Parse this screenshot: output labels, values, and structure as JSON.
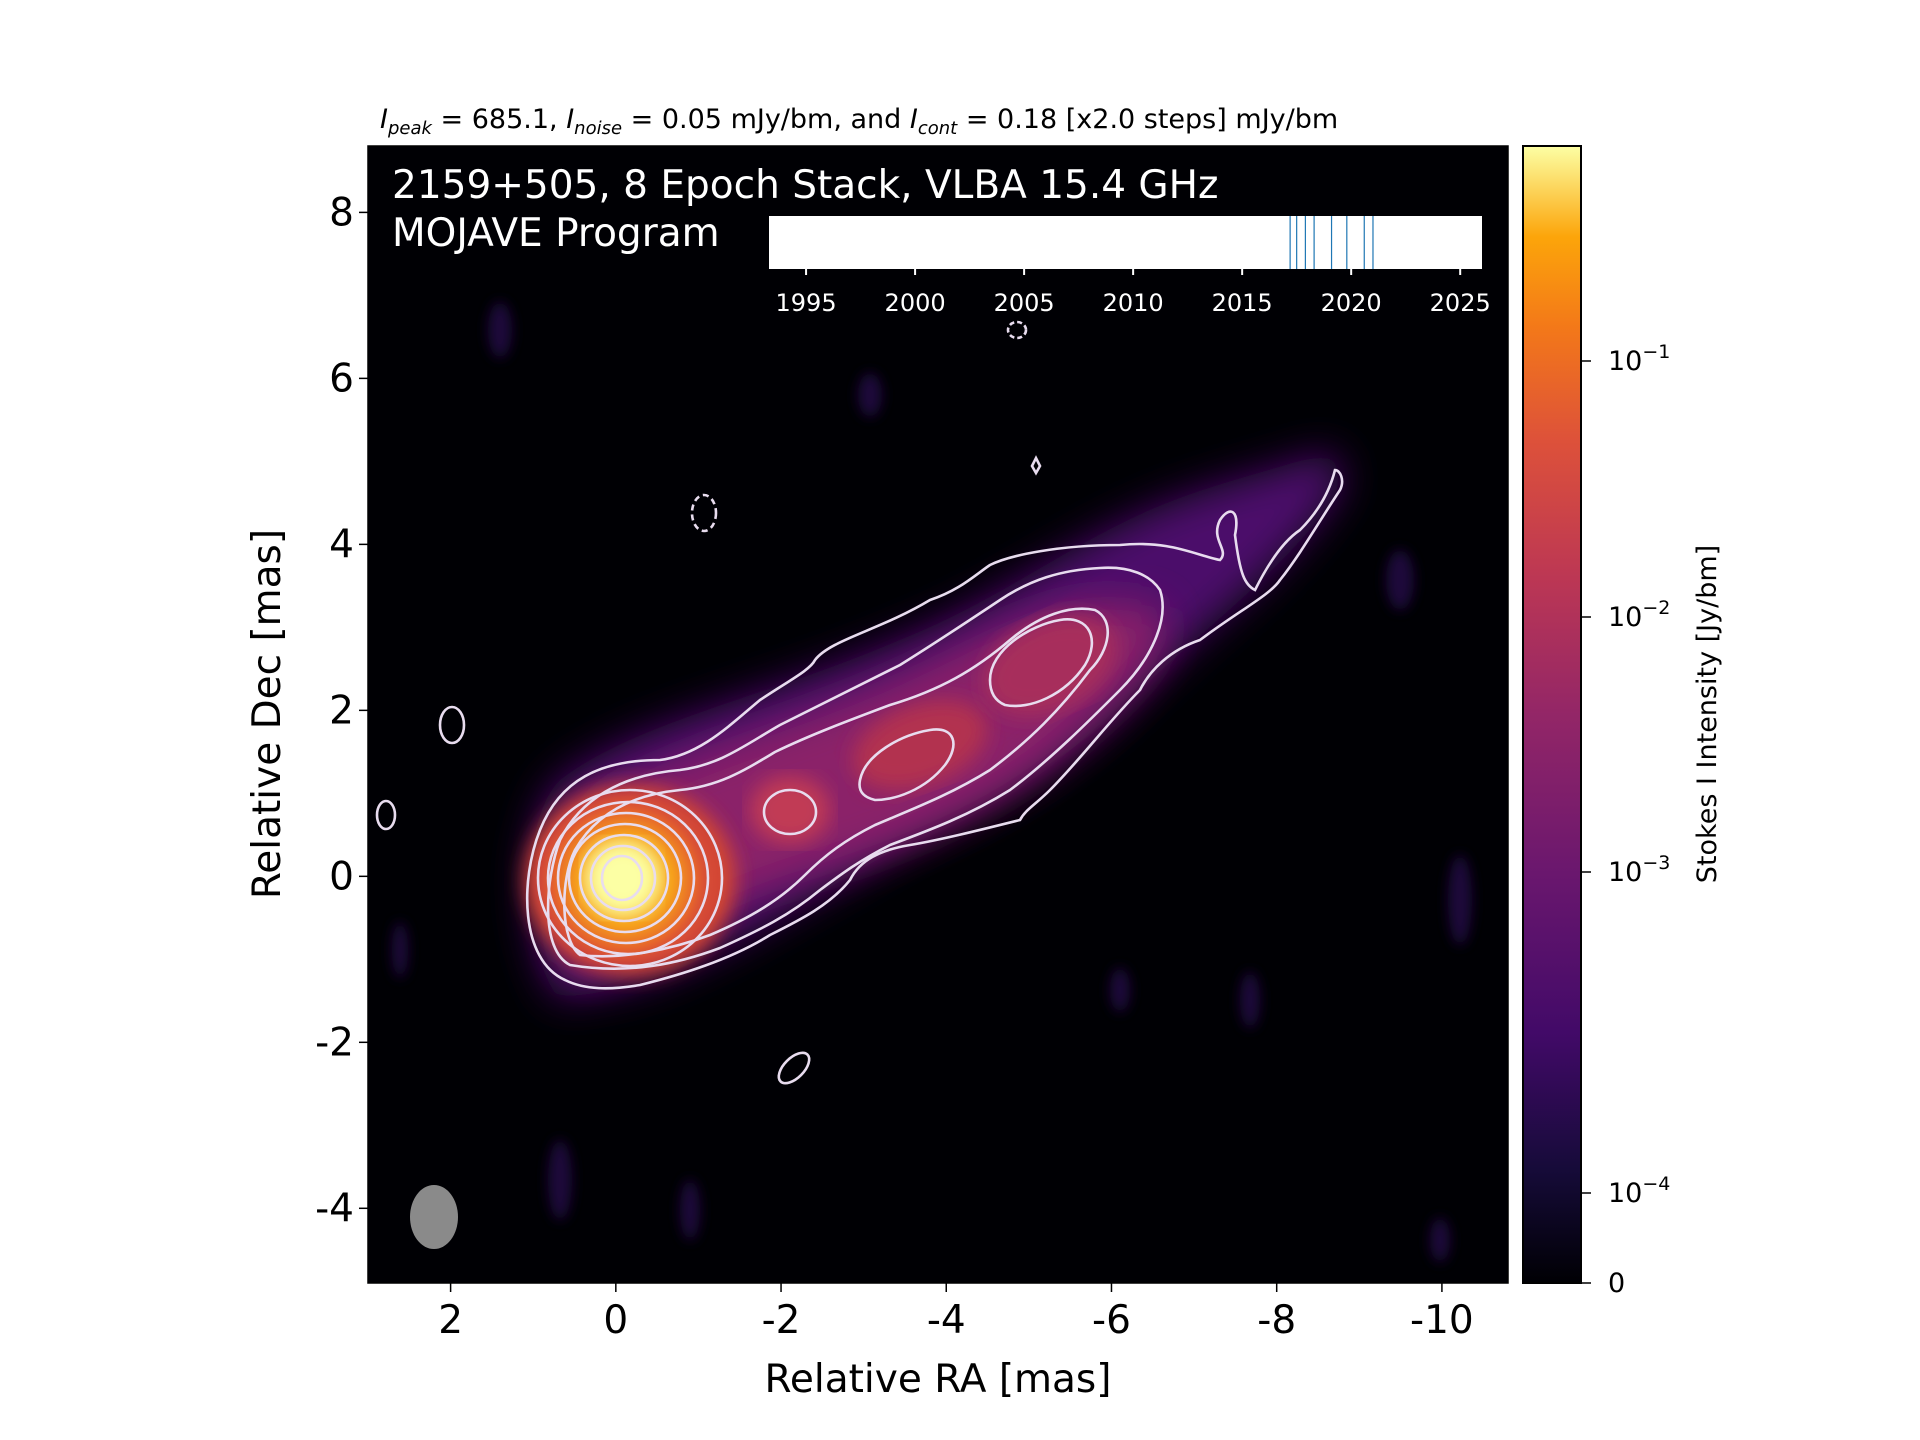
{
  "header": {
    "peak_value": "685.1",
    "noise_value": "0.05",
    "cont_value": "0.18",
    "steps": "[x2.0 steps]",
    "unit": "mJy/bm"
  },
  "chart_data": {
    "type": "heatmap",
    "title": "2159+505, 8 Epoch Stack, VLBA 15.4 GHz",
    "subtitle": "MOJAVE Program",
    "xlabel": "Relative RA [mas]",
    "ylabel": "Relative Dec [mas]",
    "xlim": [
      3.0,
      -10.8
    ],
    "ylim": [
      -4.9,
      8.8
    ],
    "x_ticks": [
      2,
      0,
      -2,
      -4,
      -6,
      -8,
      -10
    ],
    "y_ticks": [
      -4,
      -2,
      0,
      2,
      4,
      6,
      8
    ],
    "colormap": "inferno",
    "colorbar": {
      "label": "Stokes I Intensity [Jy/bm]",
      "scale": "log",
      "ticks": [
        {
          "value": 0.1,
          "base": "10",
          "exp": "−1"
        },
        {
          "value": 0.01,
          "base": "10",
          "exp": "−2"
        },
        {
          "value": 0.001,
          "base": "10",
          "exp": "−3"
        },
        {
          "value": 0.0001,
          "base": "10",
          "exp": "−4"
        },
        {
          "value": 0,
          "label": "0"
        }
      ]
    },
    "intensity_peak_mJy_per_beam": 685.1,
    "intensity_noise_mJy_per_beam": 0.05,
    "lowest_contour_mJy_per_beam": 0.18,
    "contour_step_factor": 2.0,
    "components": [
      {
        "name": "core",
        "ra": 0.0,
        "dec": 0.0
      },
      {
        "name": "knot",
        "ra": -2.1,
        "dec": 0.8
      },
      {
        "name": "knot",
        "ra": -3.6,
        "dec": 1.6
      },
      {
        "name": "knot",
        "ra": -5.3,
        "dec": 2.6
      }
    ],
    "beam": {
      "ra": 2.2,
      "dec": -4.1,
      "major_mas": 0.6,
      "minor_mas": 0.4,
      "pa_deg": 0
    },
    "epoch_timeline": {
      "xlim": [
        1993.3,
        2026.0
      ],
      "ticks": [
        1995,
        2000,
        2005,
        2010,
        2015,
        2020,
        2025
      ],
      "epochs": [
        2017.2,
        2017.5,
        2017.9,
        2018.3,
        2019.1,
        2019.8,
        2020.6,
        2021.0
      ]
    }
  }
}
